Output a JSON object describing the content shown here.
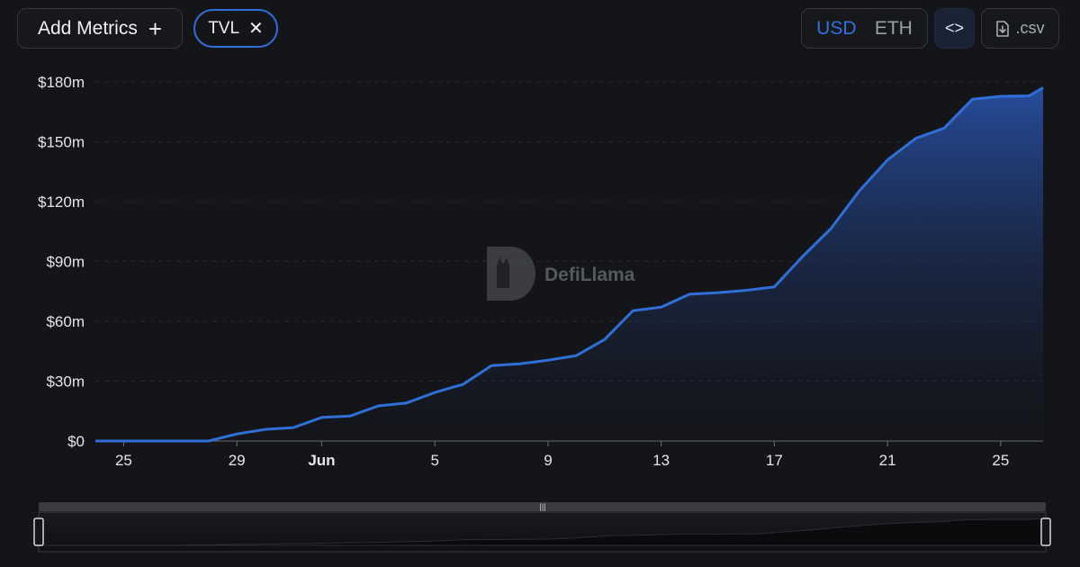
{
  "toolbar": {
    "add_metrics_label": "Add Metrics",
    "add_icon": "plus-icon",
    "metric_chip_label": "TVL",
    "remove_icon": "close-icon",
    "currency_options": [
      "USD",
      "ETH"
    ],
    "selected_currency": "USD",
    "embed_icon": "code-brackets-icon",
    "csv_label": ".csv",
    "download_icon": "file-download-icon"
  },
  "watermark": {
    "text": "DefiLlama",
    "icon": "defillama-logo-icon"
  },
  "colors": {
    "accent": "#2f6fd6",
    "line": "#2f6fd6",
    "background": "#141518"
  },
  "chart_data": {
    "type": "area",
    "title": "",
    "xlabel": "",
    "ylabel": "",
    "x_tick_labels": [
      "25",
      "29",
      "Jun",
      "5",
      "9",
      "13",
      "17",
      "21",
      "25"
    ],
    "y_tick_labels": [
      "$0",
      "$30m",
      "$60m",
      "$90m",
      "$120m",
      "$150m",
      "$180m"
    ],
    "ylim": [
      0,
      180
    ],
    "y_unit": "$m",
    "grid": true,
    "x_start": "May 24",
    "x_end": "Jun 26",
    "series": [
      {
        "name": "TVL",
        "x": [
          "May 24",
          "May 25",
          "May 26",
          "May 27",
          "May 28",
          "May 29",
          "May 30",
          "May 31",
          "Jun 1",
          "Jun 2",
          "Jun 3",
          "Jun 4",
          "Jun 5",
          "Jun 6",
          "Jun 7",
          "Jun 8",
          "Jun 9",
          "Jun 10",
          "Jun 11",
          "Jun 12",
          "Jun 13",
          "Jun 14",
          "Jun 15",
          "Jun 16",
          "Jun 17",
          "Jun 18",
          "Jun 19",
          "Jun 20",
          "Jun 21",
          "Jun 22",
          "Jun 23",
          "Jun 24",
          "Jun 25",
          "Jun 26",
          "Jun 26 (latest)"
        ],
        "values": [
          0,
          0,
          0,
          0,
          0,
          3.5,
          5.8,
          6.7,
          11.8,
          12.5,
          17.6,
          19.1,
          24.3,
          28.4,
          37.8,
          38.7,
          40.5,
          42.8,
          50.9,
          65.3,
          67.1,
          73.6,
          74.3,
          75.5,
          77.3,
          92.5,
          106.5,
          125.3,
          140.9,
          151.7,
          156.8,
          171.3,
          172.8,
          173.0,
          177.1
        ]
      }
    ]
  }
}
